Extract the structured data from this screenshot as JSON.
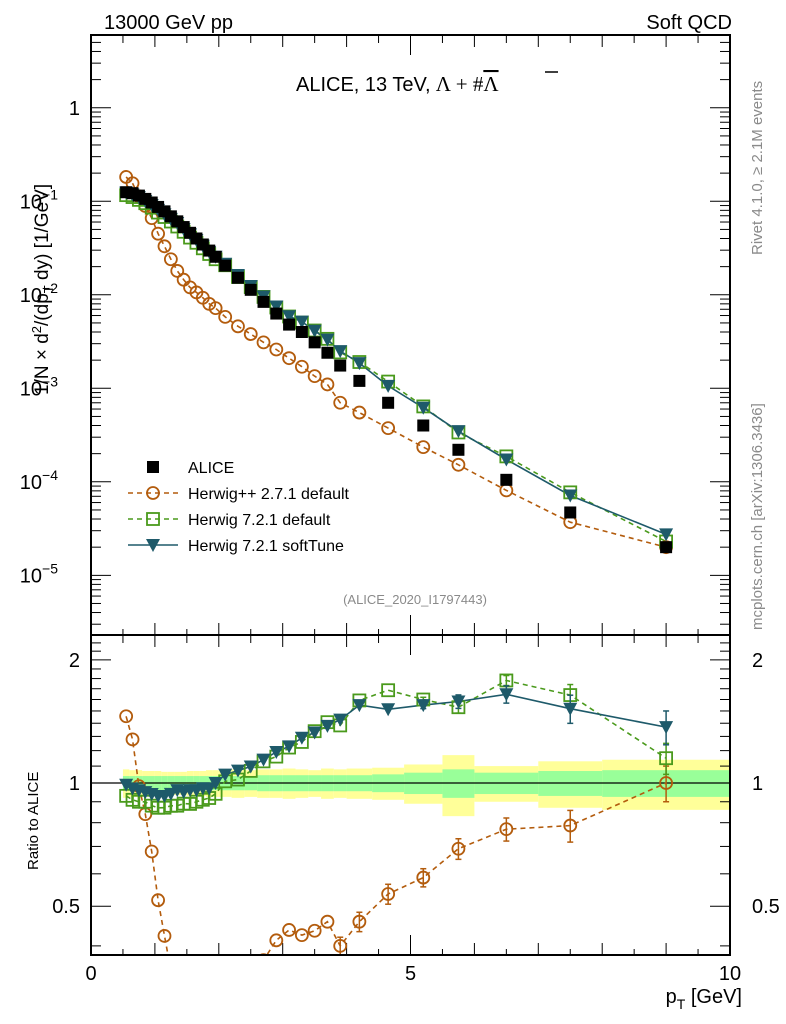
{
  "header": {
    "left": "13000 GeV pp",
    "right": "Soft QCD"
  },
  "side_labels": {
    "rivet": "Rivet 4.1.0, ≥ 2.1M events",
    "mcplots": "mcplots.cern.ch [arXiv:1306.3436]"
  },
  "chart_data": [
    {
      "type": "scatter",
      "title": "ALICE, 13 TeV,Λ + #Λ̅",
      "title_main": "ALICE, 13 TeV,",
      "title_lambda": "Λ + #Λ",
      "analysis_id": "(ALICE_2020_I1797443)",
      "xlabel": "p_T [GeV]",
      "ylabel": "1/N × d²/(dp_T dy) [1/GeV]",
      "yscale": "log",
      "xlim": [
        0,
        10
      ],
      "ylim": [
        2.3e-06,
        6
      ],
      "y_tick_labels": [
        "1",
        "10^-1",
        "10^-2",
        "10^-3",
        "10^-4",
        "10^-5"
      ],
      "legend_position": "bottom-left",
      "x": [
        0.55,
        0.65,
        0.75,
        0.85,
        0.95,
        1.05,
        1.15,
        1.25,
        1.35,
        1.45,
        1.55,
        1.65,
        1.75,
        1.85,
        1.95,
        2.1,
        2.3,
        2.5,
        2.7,
        2.9,
        3.1,
        3.3,
        3.5,
        3.7,
        3.9,
        4.2,
        4.65,
        5.2,
        5.75,
        6.5,
        7.5,
        9.0
      ],
      "series": [
        {
          "name": "ALICE",
          "style": "data",
          "color": "#000000",
          "marker": "filled-square",
          "values": [
            0.125,
            0.122,
            0.115,
            0.106,
            0.097,
            0.087,
            0.078,
            0.069,
            0.061,
            0.053,
            0.046,
            0.04,
            0.0345,
            0.0297,
            0.0255,
            0.0205,
            0.0152,
            0.0113,
            0.0084,
            0.0063,
            0.0048,
            0.004,
            0.0031,
            0.0024,
            0.00175,
            0.0012,
            0.0007,
            0.0004,
            0.00022,
            0.000105,
            4.7e-05,
            2e-05
          ]
        },
        {
          "name": "Herwig++ 2.7.1 default",
          "style": "dashed",
          "color": "#b35c0d",
          "marker": "open-circle",
          "values": [
            0.182,
            0.156,
            0.113,
            0.089,
            0.066,
            0.045,
            0.033,
            0.024,
            0.018,
            0.0145,
            0.012,
            0.0106,
            0.0093,
            0.008,
            0.0072,
            0.0058,
            0.0046,
            0.0038,
            0.0031,
            0.0026,
            0.0021,
            0.0017,
            0.00135,
            0.0011,
            0.0007,
            0.00055,
            0.000375,
            0.000235,
            0.000152,
            8.1e-05,
            3.7e-05,
            2e-05
          ],
          "ratio_err": [
            0,
            0,
            0,
            0,
            0,
            0,
            0,
            0,
            0,
            0,
            0,
            0,
            0,
            0,
            0,
            0,
            0,
            0,
            0,
            0,
            0,
            0,
            0,
            0,
            0.02,
            0.025,
            0.03,
            0.03,
            0.04,
            0.05,
            0.07,
            0.1
          ]
        },
        {
          "name": "Herwig 7.2.1 default",
          "style": "dashed",
          "color": "#4a9a1c",
          "marker": "open-square",
          "values": [
            0.1163,
            0.111,
            0.1035,
            0.0954,
            0.0854,
            0.0757,
            0.0679,
            0.0607,
            0.0537,
            0.0472,
            0.0409,
            0.036,
            0.0314,
            0.0273,
            0.024,
            0.0207,
            0.0155,
            0.0121,
            0.00949,
            0.00731,
            0.00586,
            0.00504,
            0.00415,
            0.00338,
            0.00242,
            0.00191,
            0.00118,
            0.00064,
            0.000337,
            0.000187,
            7.71e-05,
            2.3e-05
          ],
          "ratio_err": [
            0,
            0,
            0,
            0,
            0,
            0,
            0,
            0,
            0,
            0,
            0,
            0,
            0,
            0,
            0,
            0,
            0,
            0,
            0,
            0,
            0,
            0,
            0,
            0,
            0,
            0,
            0,
            0.02,
            0.05,
            0.05,
            0.1,
            0.1
          ]
        },
        {
          "name": "Herwig 7.2.1 softTune",
          "style": "solid",
          "color": "#1e5a6a",
          "marker": "filled-triangle-down",
          "values": [
            0.1238,
            0.1183,
            0.1104,
            0.1007,
            0.0912,
            0.0809,
            0.0725,
            0.0649,
            0.0586,
            0.0504,
            0.0442,
            0.0384,
            0.0335,
            0.0288,
            0.0255,
            0.0215,
            0.0163,
            0.0124,
            0.00958,
            0.0075,
            0.0059,
            0.00516,
            0.00412,
            0.00331,
            0.0025,
            0.00186,
            0.00106,
            0.00062,
            0.000348,
            0.000173,
            7.14e-05,
            2.74e-05
          ],
          "ratio_err": [
            0,
            0,
            0,
            0,
            0,
            0,
            0,
            0,
            0,
            0,
            0,
            0,
            0,
            0,
            0,
            0,
            0,
            0,
            0,
            0,
            0,
            0,
            0,
            0,
            0,
            0,
            0,
            0.03,
            0.06,
            0.08,
            0.12,
            0.13
          ]
        }
      ]
    },
    {
      "type": "scatter",
      "title": "",
      "xlabel": "p_T [GeV]",
      "ylabel": "Ratio to ALICE",
      "yscale": "log",
      "xlim": [
        0,
        10
      ],
      "ylim": [
        0.38,
        2.3
      ],
      "y_ticks": [
        0.5,
        1,
        2
      ],
      "y_tick_labels": [
        "0.5",
        "1",
        "2"
      ],
      "x_ticks": [
        0,
        5,
        10
      ],
      "x_tick_labels": [
        "0",
        "5",
        "10"
      ],
      "reference_line": 1,
      "bins": [
        {
          "lo": 0.5,
          "hi": 0.6,
          "stat": 0.04,
          "tot": 0.08
        },
        {
          "lo": 0.6,
          "hi": 0.7,
          "stat": 0.04,
          "tot": 0.075
        },
        {
          "lo": 0.7,
          "hi": 0.8,
          "stat": 0.04,
          "tot": 0.075
        },
        {
          "lo": 0.8,
          "hi": 0.9,
          "stat": 0.04,
          "tot": 0.07
        },
        {
          "lo": 0.9,
          "hi": 1.0,
          "stat": 0.04,
          "tot": 0.07
        },
        {
          "lo": 1.0,
          "hi": 1.1,
          "stat": 0.04,
          "tot": 0.07
        },
        {
          "lo": 1.1,
          "hi": 1.2,
          "stat": 0.04,
          "tot": 0.065
        },
        {
          "lo": 1.2,
          "hi": 1.3,
          "stat": 0.04,
          "tot": 0.065
        },
        {
          "lo": 1.3,
          "hi": 1.4,
          "stat": 0.04,
          "tot": 0.065
        },
        {
          "lo": 1.4,
          "hi": 1.5,
          "stat": 0.04,
          "tot": 0.065
        },
        {
          "lo": 1.5,
          "hi": 1.6,
          "stat": 0.04,
          "tot": 0.07
        },
        {
          "lo": 1.6,
          "hi": 1.7,
          "stat": 0.04,
          "tot": 0.07
        },
        {
          "lo": 1.7,
          "hi": 1.8,
          "stat": 0.04,
          "tot": 0.07
        },
        {
          "lo": 1.8,
          "hi": 1.9,
          "stat": 0.04,
          "tot": 0.075
        },
        {
          "lo": 1.9,
          "hi": 2.0,
          "stat": 0.04,
          "tot": 0.075
        },
        {
          "lo": 2.0,
          "hi": 2.2,
          "stat": 0.04,
          "tot": 0.075
        },
        {
          "lo": 2.2,
          "hi": 2.4,
          "stat": 0.04,
          "tot": 0.08
        },
        {
          "lo": 2.4,
          "hi": 2.6,
          "stat": 0.04,
          "tot": 0.075
        },
        {
          "lo": 2.6,
          "hi": 2.8,
          "stat": 0.045,
          "tot": 0.08
        },
        {
          "lo": 2.8,
          "hi": 3.0,
          "stat": 0.045,
          "tot": 0.08
        },
        {
          "lo": 3.0,
          "hi": 3.2,
          "stat": 0.045,
          "tot": 0.085
        },
        {
          "lo": 3.2,
          "hi": 3.4,
          "stat": 0.045,
          "tot": 0.08
        },
        {
          "lo": 3.4,
          "hi": 3.6,
          "stat": 0.045,
          "tot": 0.075
        },
        {
          "lo": 3.6,
          "hi": 3.8,
          "stat": 0.045,
          "tot": 0.085
        },
        {
          "lo": 3.8,
          "hi": 4.0,
          "stat": 0.045,
          "tot": 0.08
        },
        {
          "lo": 4.0,
          "hi": 4.4,
          "stat": 0.045,
          "tot": 0.085
        },
        {
          "lo": 4.4,
          "hi": 4.9,
          "stat": 0.05,
          "tot": 0.09
        },
        {
          "lo": 4.9,
          "hi": 5.5,
          "stat": 0.06,
          "tot": 0.11
        },
        {
          "lo": 5.5,
          "hi": 6.0,
          "stat": 0.08,
          "tot": 0.17
        },
        {
          "lo": 6.0,
          "hi": 7.0,
          "stat": 0.06,
          "tot": 0.1
        },
        {
          "lo": 7.0,
          "hi": 8.0,
          "stat": 0.07,
          "tot": 0.13
        },
        {
          "lo": 8.0,
          "hi": 10.0,
          "stat": 0.075,
          "tot": 0.14
        }
      ]
    }
  ]
}
